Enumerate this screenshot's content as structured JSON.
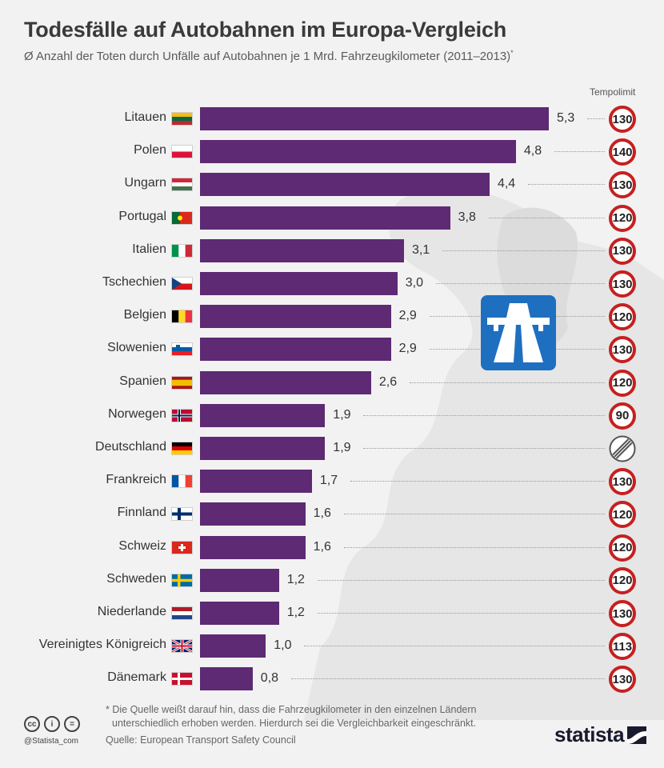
{
  "header": {
    "title": "Todesfälle auf Autobahnen im Europa-Vergleich",
    "subtitle": "Ø Anzahl der Toten durch Unfälle auf Autobahnen je 1 Mrd. Fahrzeugkilometer (2011–2013)",
    "subtitle_mark": "*"
  },
  "tempo_header": "Tempolimit",
  "chart_data": {
    "type": "bar",
    "orientation": "horizontal",
    "title": "Todesfälle auf Autobahnen im Europa-Vergleich",
    "categories": [
      "Litauen",
      "Polen",
      "Ungarn",
      "Portugal",
      "Italien",
      "Tschechien",
      "Belgien",
      "Slowenien",
      "Spanien",
      "Norwegen",
      "Deutschland",
      "Frankreich",
      "Finnland",
      "Schweiz",
      "Schweden",
      "Niederlande",
      "Vereinigtes Königreich",
      "Dänemark"
    ],
    "values": [
      5.3,
      4.8,
      4.4,
      3.8,
      3.1,
      3.0,
      2.9,
      2.9,
      2.6,
      1.9,
      1.9,
      1.7,
      1.6,
      1.6,
      1.2,
      1.2,
      1.0,
      0.8
    ],
    "value_labels": [
      "5,3",
      "4,8",
      "4,4",
      "3,8",
      "3,1",
      "3,0",
      "2,9",
      "2,9",
      "2,6",
      "1,9",
      "1,9",
      "1,7",
      "1,6",
      "1,6",
      "1,2",
      "1,2",
      "1,0",
      "0,8"
    ],
    "speed_limits": [
      "130",
      "140",
      "130",
      "120",
      "130",
      "130",
      "120",
      "130",
      "120",
      "90",
      "",
      "130",
      "120",
      "120",
      "120",
      "130",
      "113",
      "130"
    ],
    "speed_limit_types": [
      "number",
      "number",
      "number",
      "number",
      "number",
      "number",
      "number",
      "number",
      "number",
      "number",
      "no-limit",
      "number",
      "number",
      "number",
      "number",
      "number",
      "number",
      "number"
    ],
    "flags": [
      "lt",
      "pl",
      "hu",
      "pt",
      "it",
      "cz",
      "be",
      "si",
      "es",
      "no",
      "de",
      "fr",
      "fi",
      "ch",
      "se",
      "nl",
      "gb",
      "dk"
    ],
    "bar_color": "#5e2a73",
    "sign_color": "#c62020",
    "xlim": [
      0,
      5.3
    ],
    "grid": false,
    "legend": "none"
  },
  "autobahn_sign_icon": "autobahn-sign-icon",
  "footnote": {
    "line1": "* Die Quelle weißt darauf hin, dass die Fahrzeugkilometer in den einzelnen Ländern",
    "line2": "unterschiedlich erhoben werden. Hierdurch sei die Vergleichbarkeit eingeschränkt."
  },
  "source": "Quelle: European Transport Safety Council",
  "license_icons": [
    "cc-icon",
    "by-icon",
    "nd-icon"
  ],
  "license_glyphs": [
    "cc",
    "i",
    "="
  ],
  "handle": "@Statista_com",
  "brand": "statista"
}
